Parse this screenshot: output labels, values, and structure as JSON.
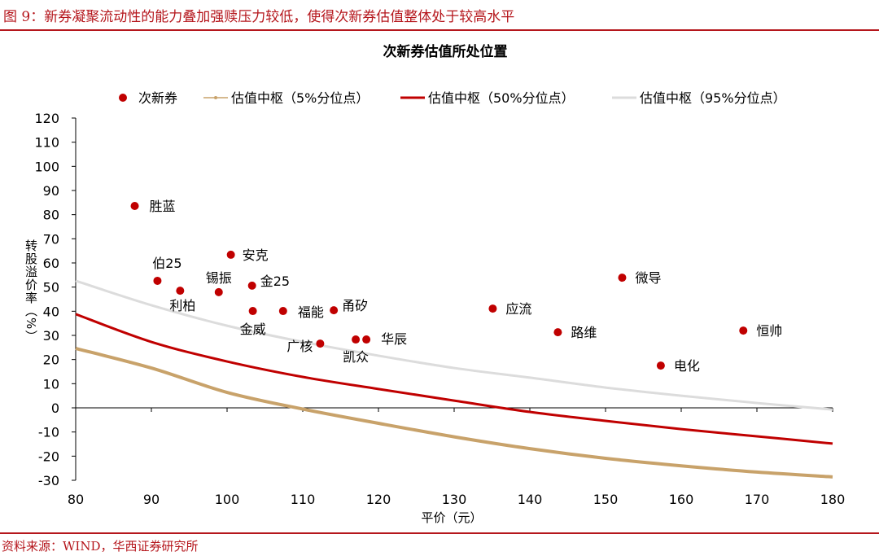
{
  "header": {
    "title": "图 9：新券凝聚流动性的能力叠加强赎压力较低，使得次新券估值整体处于较高水平"
  },
  "footer": {
    "source": "资料来源：WIND，华西证券研究所"
  },
  "chart_data": {
    "type": "scatter",
    "title": "次新券估值所处位置",
    "xlabel": "平价（元）",
    "ylabel": "转股溢价率（%）",
    "xlim": [
      80,
      180
    ],
    "ylim": [
      -30,
      120
    ],
    "xticks": [
      80,
      90,
      100,
      110,
      120,
      130,
      140,
      150,
      160,
      170,
      180
    ],
    "yticks": [
      -30,
      -20,
      -10,
      0,
      10,
      20,
      30,
      40,
      50,
      60,
      70,
      80,
      90,
      100,
      110,
      120
    ],
    "grid": false,
    "legend_position": "top",
    "colors": {
      "points": "#c00000",
      "p5": "#c8a26a",
      "p50": "#c00000",
      "p95": "#dcdcdc"
    },
    "points": {
      "name": "次新券",
      "data": [
        {
          "label": "胜蓝",
          "x": 87.8,
          "y": 83.6
        },
        {
          "label": "伯25",
          "x": 90.8,
          "y": 52.6
        },
        {
          "label": "利柏",
          "x": 93.8,
          "y": 48.5
        },
        {
          "label": "锡振",
          "x": 98.9,
          "y": 47.9
        },
        {
          "label": "安克",
          "x": 100.5,
          "y": 63.4
        },
        {
          "label": "金25",
          "x": 103.3,
          "y": 50.6
        },
        {
          "label": "金威",
          "x": 103.4,
          "y": 40.1
        },
        {
          "label": "福能",
          "x": 107.4,
          "y": 40.1
        },
        {
          "label": "甬矽",
          "x": 114.1,
          "y": 40.4
        },
        {
          "label": "广核",
          "x": 112.3,
          "y": 26.6
        },
        {
          "label": "凯众",
          "x": 117.0,
          "y": 28.3
        },
        {
          "label": "华辰",
          "x": 118.4,
          "y": 28.3
        },
        {
          "label": "应流",
          "x": 135.1,
          "y": 41.1
        },
        {
          "label": "路维",
          "x": 143.7,
          "y": 31.3
        },
        {
          "label": "微导",
          "x": 152.2,
          "y": 53.9
        },
        {
          "label": "电化",
          "x": 157.3,
          "y": 17.5
        },
        {
          "label": "恒帅",
          "x": 168.2,
          "y": 32.0
        }
      ]
    },
    "curves": [
      {
        "key": "p5",
        "name": "估值中枢（5%分位点）",
        "x": [
          80,
          90,
          100,
          110,
          120,
          130,
          140,
          150,
          160,
          170,
          180
        ],
        "y": [
          24.6,
          16.5,
          6.4,
          -0.5,
          -6.4,
          -12,
          -16.9,
          -20.9,
          -24,
          -26.6,
          -28.6
        ]
      },
      {
        "key": "p50",
        "name": "估值中枢（50%分位点）",
        "x": [
          80,
          90,
          100,
          110,
          120,
          130,
          140,
          150,
          160,
          170,
          180
        ],
        "y": [
          38.8,
          27.3,
          19.2,
          12.8,
          7.8,
          3.0,
          -1.7,
          -5.4,
          -8.8,
          -11.8,
          -14.8
        ]
      },
      {
        "key": "p95",
        "name": "估值中枢（95%分位点）",
        "x": [
          80,
          90,
          100,
          110,
          120,
          130,
          140,
          150,
          160,
          170,
          180
        ],
        "y": [
          52.6,
          42.5,
          34,
          27.3,
          21.6,
          16.5,
          12.5,
          8.4,
          5,
          2,
          -0.7
        ]
      }
    ]
  }
}
